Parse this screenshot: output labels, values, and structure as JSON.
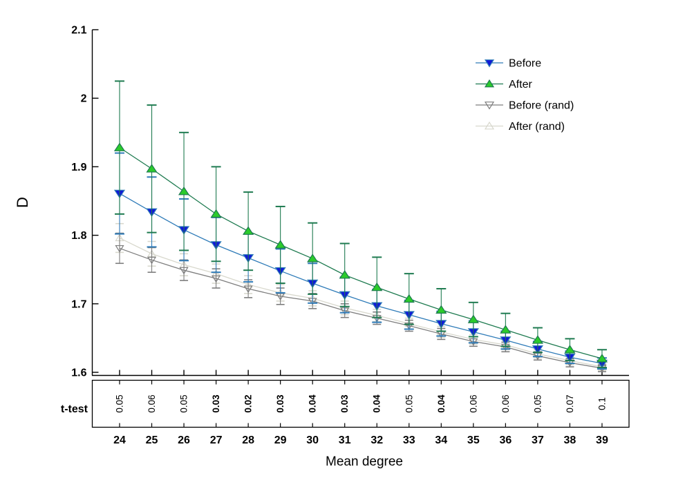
{
  "chart_data": {
    "type": "line",
    "title": "",
    "xlabel": "Mean degree",
    "ylabel": "D",
    "x": [
      24,
      25,
      26,
      27,
      28,
      29,
      30,
      31,
      32,
      33,
      34,
      35,
      36,
      37,
      38,
      39
    ],
    "ylim": [
      1.6,
      2.1
    ],
    "yticks": [
      1.6,
      1.7,
      1.8,
      1.9,
      2.0,
      2.1
    ],
    "ytick_labels": [
      "1.6",
      "1.7",
      "1.8",
      "1.9",
      "2",
      "2.1"
    ],
    "xtick_labels": [
      "24",
      "25",
      "26",
      "27",
      "28",
      "29",
      "30",
      "31",
      "32",
      "33",
      "34",
      "35",
      "36",
      "37",
      "38",
      "39"
    ],
    "grid": false,
    "legend_position": "upper-right-no-box",
    "series": [
      {
        "name": "Before",
        "marker": "triangle-down",
        "filled": true,
        "line_color": "#2e7bb8",
        "marker_color": "#1118d8",
        "values": [
          1.861,
          1.834,
          1.808,
          1.786,
          1.767,
          1.748,
          1.73,
          1.713,
          1.697,
          1.684,
          1.671,
          1.659,
          1.647,
          1.634,
          1.622,
          1.613
        ],
        "errors": [
          0.059,
          0.051,
          0.045,
          0.04,
          0.035,
          0.032,
          0.029,
          0.026,
          0.024,
          0.021,
          0.018,
          0.016,
          0.013,
          0.011,
          0.009,
          0.008
        ]
      },
      {
        "name": "After",
        "marker": "triangle-up",
        "filled": true,
        "line_color": "#1d7a4f",
        "marker_color": "#2bcb2b",
        "values": [
          1.928,
          1.897,
          1.864,
          1.831,
          1.806,
          1.786,
          1.766,
          1.742,
          1.724,
          1.707,
          1.691,
          1.677,
          1.662,
          1.647,
          1.633,
          1.62
        ],
        "errors": [
          0.097,
          0.093,
          0.086,
          0.069,
          0.057,
          0.056,
          0.052,
          0.046,
          0.044,
          0.037,
          0.031,
          0.025,
          0.024,
          0.018,
          0.016,
          0.013
        ]
      },
      {
        "name": "Before (rand)",
        "marker": "triangle-down",
        "filled": false,
        "line_color": "#7d7d7d",
        "marker_color": "#7d7d7d",
        "values": [
          1.781,
          1.764,
          1.749,
          1.737,
          1.722,
          1.711,
          1.704,
          1.69,
          1.679,
          1.668,
          1.656,
          1.645,
          1.637,
          1.624,
          1.614,
          1.606
        ],
        "errors": [
          0.022,
          0.018,
          0.015,
          0.014,
          0.013,
          0.012,
          0.011,
          0.01,
          0.009,
          0.008,
          0.008,
          0.007,
          0.007,
          0.006,
          0.006,
          0.005
        ]
      },
      {
        "name": "After (rand)",
        "marker": "triangle-up",
        "filled": false,
        "line_color": "#d8d8cd",
        "marker_color": "#d8d8cd",
        "values": [
          1.796,
          1.773,
          1.757,
          1.744,
          1.728,
          1.716,
          1.708,
          1.694,
          1.683,
          1.671,
          1.659,
          1.648,
          1.64,
          1.627,
          1.617,
          1.608
        ],
        "errors": [
          0.021,
          0.018,
          0.016,
          0.014,
          0.013,
          0.012,
          0.011,
          0.01,
          0.009,
          0.008,
          0.008,
          0.007,
          0.007,
          0.006,
          0.006,
          0.005
        ]
      }
    ],
    "t_test": {
      "label": "t-test",
      "values": [
        "0.05",
        "0.06",
        "0.05",
        "0.03",
        "0.02",
        "0.03",
        "0.04",
        "0.03",
        "0.04",
        "0.05",
        "0.04",
        "0.06",
        "0.06",
        "0.05",
        "0.07",
        "0.1"
      ],
      "bold": [
        false,
        false,
        false,
        true,
        true,
        true,
        true,
        true,
        true,
        false,
        true,
        false,
        false,
        false,
        false,
        false
      ]
    },
    "colors": {
      "axis": "#000000",
      "background": "#ffffff"
    }
  }
}
